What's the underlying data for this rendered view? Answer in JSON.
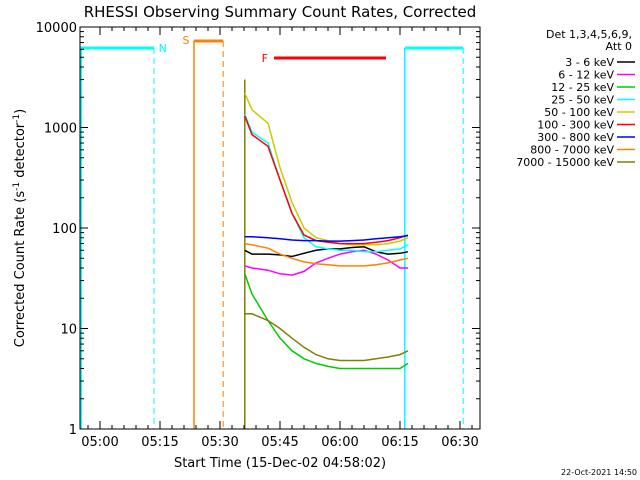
{
  "chart_data": {
    "type": "line",
    "title": "RHESSI Observing Summary Count Rates, Corrected",
    "xlabel": "Start Time (15-Dec-02 04:58:02)",
    "ylabel_main": "Corrected Count Rate (s",
    "ylabel_sup1": "-1",
    "ylabel_mid": " detector",
    "ylabel_sup2": "-1",
    "ylabel_end": ")",
    "footer": "22-Oct-2021 14:50",
    "x_time_origin": "04:58:02",
    "xlim": [
      -3,
      97
    ],
    "ylim": [
      1,
      10000
    ],
    "y_scale": "log",
    "grid": false,
    "x_ticks": [
      {
        "x": 2,
        "label": "05:00"
      },
      {
        "x": 17,
        "label": "05:15"
      },
      {
        "x": 32,
        "label": "05:30"
      },
      {
        "x": 47,
        "label": "05:45"
      },
      {
        "x": 62,
        "label": "06:00"
      },
      {
        "x": 77,
        "label": "06:15"
      },
      {
        "x": 92,
        "label": "06:30"
      }
    ],
    "y_ticks": [
      {
        "y": 1,
        "label": "1"
      },
      {
        "y": 10,
        "label": "10"
      },
      {
        "y": 100,
        "label": "100"
      },
      {
        "y": 1000,
        "label": "1000"
      },
      {
        "y": 10000,
        "label": "10000"
      }
    ],
    "legend": {
      "placement": "right",
      "header1": "Det 1,3,4,5,6,9,",
      "header2": "Att 0"
    },
    "series": [
      {
        "name": "3 - 6 keV",
        "color": "#000000",
        "x": [
          38.2,
          40,
          44,
          47,
          50,
          53,
          56,
          59,
          62,
          65,
          68,
          71,
          74,
          77,
          79
        ],
        "y": [
          60,
          55,
          55,
          54,
          52,
          56,
          60,
          62,
          62,
          64,
          65,
          58,
          55,
          56,
          58
        ]
      },
      {
        "name": "6 - 12 keV",
        "color": "#ff00ff",
        "x": [
          38.2,
          40,
          44,
          47,
          50,
          53,
          56,
          59,
          62,
          65,
          68,
          71,
          74,
          77,
          79
        ],
        "y": [
          42,
          40,
          38,
          35,
          34,
          37,
          45,
          50,
          55,
          58,
          60,
          55,
          48,
          40,
          40
        ]
      },
      {
        "name": "12 - 25 keV",
        "color": "#00cc00",
        "x": [
          38.2,
          40,
          44,
          47,
          50,
          53,
          56,
          59,
          62,
          65,
          68,
          71,
          74,
          77,
          79
        ],
        "y": [
          35,
          22,
          12,
          8,
          6,
          5,
          4.5,
          4.2,
          4,
          4,
          4,
          4,
          4,
          4,
          4.5
        ]
      },
      {
        "name": "25 - 50 keV",
        "color": "#00ffff",
        "x": [
          38.2,
          40,
          44,
          47,
          50,
          53,
          56,
          59,
          62,
          65,
          68,
          71,
          74,
          77,
          79
        ],
        "y": [
          1350,
          900,
          700,
          300,
          140,
          80,
          65,
          62,
          60,
          60,
          58,
          58,
          60,
          62,
          68
        ]
      },
      {
        "name": "50 - 100 keV",
        "color": "#cccc00",
        "x": [
          38.2,
          40,
          44,
          47,
          50,
          53,
          56,
          59,
          62,
          65,
          68,
          71,
          74,
          77,
          79
        ],
        "y": [
          2200,
          1500,
          1100,
          400,
          180,
          100,
          80,
          75,
          70,
          68,
          68,
          68,
          70,
          74,
          80
        ]
      },
      {
        "name": "100 - 300 keV",
        "color": "#ff0000",
        "x": [
          38.2,
          40,
          44,
          47,
          50,
          53,
          56,
          59,
          62,
          65,
          68,
          71,
          74,
          77,
          79
        ],
        "y": [
          1300,
          850,
          650,
          300,
          140,
          85,
          75,
          72,
          70,
          70,
          70,
          72,
          75,
          80,
          85
        ]
      },
      {
        "name": "300 - 800 keV",
        "color": "#0000ff",
        "x": [
          38.2,
          40,
          44,
          47,
          50,
          53,
          56,
          59,
          62,
          65,
          68,
          71,
          74,
          77,
          79
        ],
        "y": [
          82,
          82,
          80,
          78,
          76,
          75,
          75,
          74,
          74,
          75,
          76,
          78,
          80,
          82,
          84
        ]
      },
      {
        "name": "800 - 7000 keV",
        "color": "#ff8000",
        "x": [
          38.2,
          40,
          44,
          47,
          50,
          53,
          56,
          59,
          62,
          65,
          68,
          71,
          74,
          77,
          79
        ],
        "y": [
          70,
          68,
          63,
          55,
          50,
          46,
          44,
          43,
          42,
          42,
          42,
          43,
          45,
          48,
          50
        ]
      },
      {
        "name": "7000 - 15000 keV",
        "color": "#808000",
        "x": [
          38.2,
          40,
          44,
          47,
          50,
          53,
          56,
          59,
          62,
          65,
          68,
          71,
          74,
          77,
          79
        ],
        "y": [
          14,
          14,
          12,
          10,
          8,
          6.5,
          5.5,
          5,
          4.8,
          4.8,
          4.8,
          5,
          5.2,
          5.5,
          6
        ]
      }
    ],
    "annotations": {
      "N_label": "N",
      "S_label": "S",
      "F_label": "F"
    }
  }
}
